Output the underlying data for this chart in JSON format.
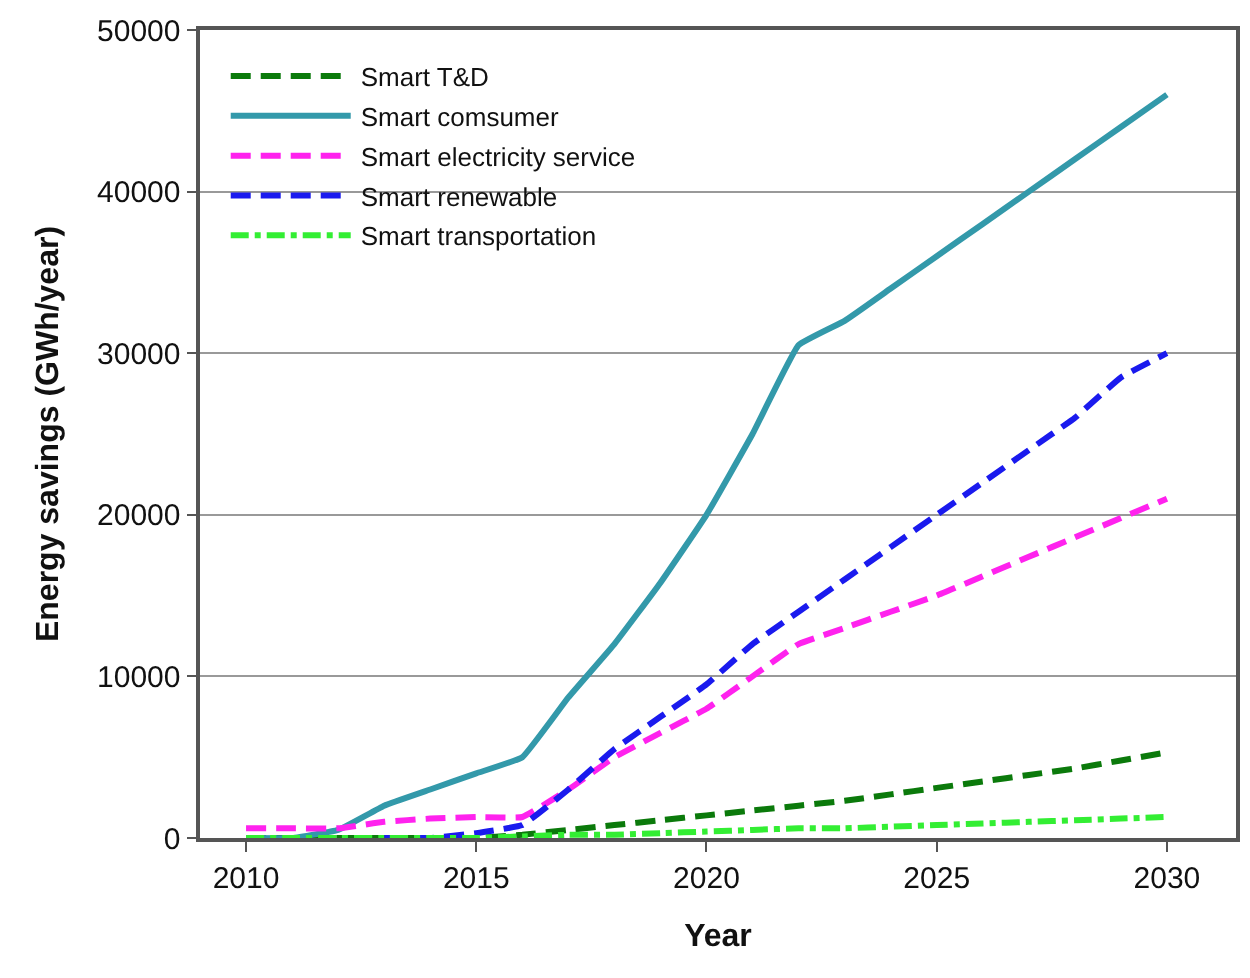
{
  "chart_data": {
    "type": "line",
    "xlabel": "Year",
    "ylabel": "Energy savings (GWh/year)",
    "xlim": [
      2009,
      2031.5
    ],
    "xticks": [
      2010,
      2015,
      2020,
      2025,
      2030
    ],
    "ylim": [
      0,
      50000
    ],
    "yticks": [
      0,
      10000,
      20000,
      30000,
      40000,
      50000
    ],
    "grid": "y",
    "legend": "top left",
    "marker": "none",
    "x": [
      2010,
      2011,
      2012,
      2013,
      2014,
      2015,
      2016,
      2017,
      2018,
      2019,
      2020,
      2021,
      2022,
      2023,
      2024,
      2025,
      2026,
      2027,
      2028,
      2029,
      2030
    ],
    "series": [
      {
        "name": "Smart T&D",
        "color": "#0b7a0b",
        "line_style": "dashed",
        "values": [
          0,
          0,
          0,
          0,
          0,
          0,
          200,
          500,
          800,
          1100,
          1400,
          1700,
          2000,
          2300,
          2700,
          3100,
          3500,
          3900,
          4300,
          4800,
          5300
        ]
      },
      {
        "name": "Smart comsumer",
        "color": "#3399aa",
        "line_style": "solid",
        "values": [
          0,
          0,
          500,
          2000,
          3000,
          4000,
          5000,
          8700,
          12000,
          15800,
          20000,
          25000,
          30500,
          32000,
          34000,
          36000,
          38000,
          40000,
          42000,
          44000,
          46000
        ]
      },
      {
        "name": "Smart electricity service",
        "color": "#ff22ee",
        "line_style": "dashed",
        "values": [
          600,
          600,
          600,
          1000,
          1200,
          1300,
          1300,
          3000,
          5000,
          6500,
          8000,
          10000,
          12000,
          13000,
          14000,
          15000,
          16200,
          17400,
          18600,
          19800,
          21000
        ]
      },
      {
        "name": "Smart renewable",
        "color": "#1a1aee",
        "line_style": "dashed",
        "values": [
          null,
          null,
          null,
          0,
          0,
          300,
          800,
          3000,
          5500,
          7500,
          9500,
          12000,
          14000,
          16000,
          18000,
          20000,
          22000,
          24000,
          26000,
          28500,
          30000
        ]
      },
      {
        "name": "Smart transportation",
        "color": "#33ee33",
        "line_style": "dashdot",
        "values": [
          0,
          0,
          0,
          0,
          0,
          0,
          100,
          200,
          200,
          300,
          400,
          500,
          600,
          600,
          700,
          800,
          900,
          1000,
          1100,
          1200,
          1300
        ]
      }
    ]
  }
}
